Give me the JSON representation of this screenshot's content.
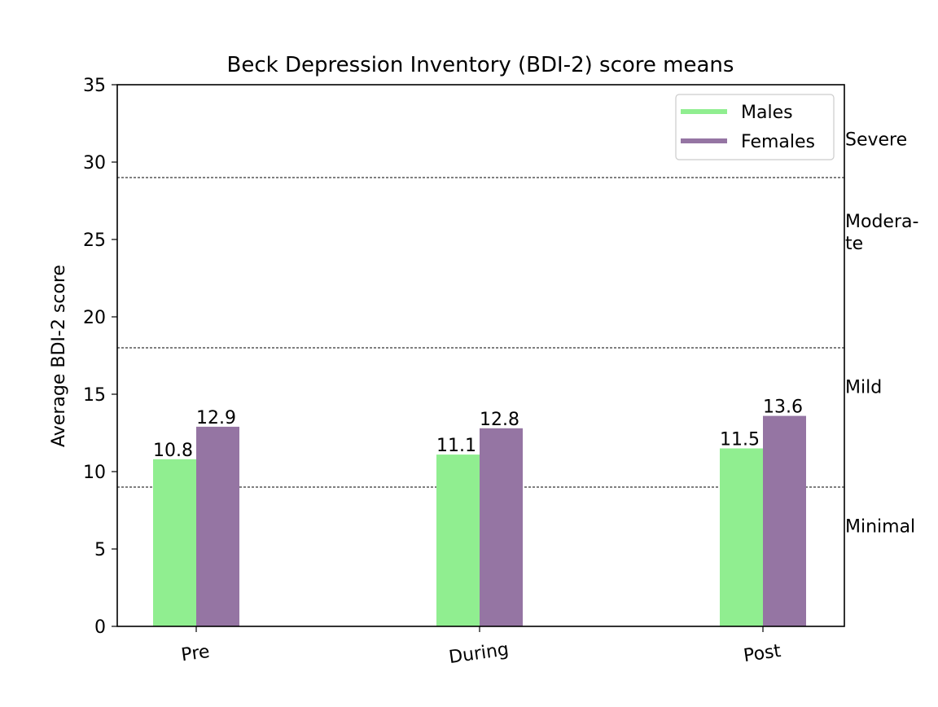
{
  "chart_data": {
    "type": "bar",
    "title": "Beck Depression Inventory (BDI-2) score means",
    "xlabel": "",
    "ylabel": "Average BDI-2 score",
    "ylim": [
      0,
      35
    ],
    "yticks": [
      0,
      5,
      10,
      15,
      20,
      25,
      30,
      35
    ],
    "categories": [
      "Pre",
      "During",
      "Post"
    ],
    "series": [
      {
        "name": "Males",
        "values": [
          10.8,
          11.1,
          11.5
        ],
        "labels": [
          "10.8",
          "11.1",
          "11.5"
        ],
        "color": "#90ee90"
      },
      {
        "name": "Females",
        "values": [
          12.9,
          12.8,
          13.6
        ],
        "labels": [
          "12.9",
          "12.8",
          "13.6"
        ],
        "color": "#9575a3"
      }
    ],
    "reference_lines": [
      9,
      18,
      29
    ],
    "severity_bands": [
      {
        "lines": [
          "Severe"
        ],
        "value": 31.5
      },
      {
        "lines": [
          "Modera-",
          "te"
        ],
        "value": 25.5
      },
      {
        "lines": [
          "Mild"
        ],
        "value": 15.5
      },
      {
        "lines": [
          "Minimal"
        ],
        "value": 6.5
      }
    ],
    "legend": {
      "placement": "upper right"
    },
    "grid": false
  }
}
